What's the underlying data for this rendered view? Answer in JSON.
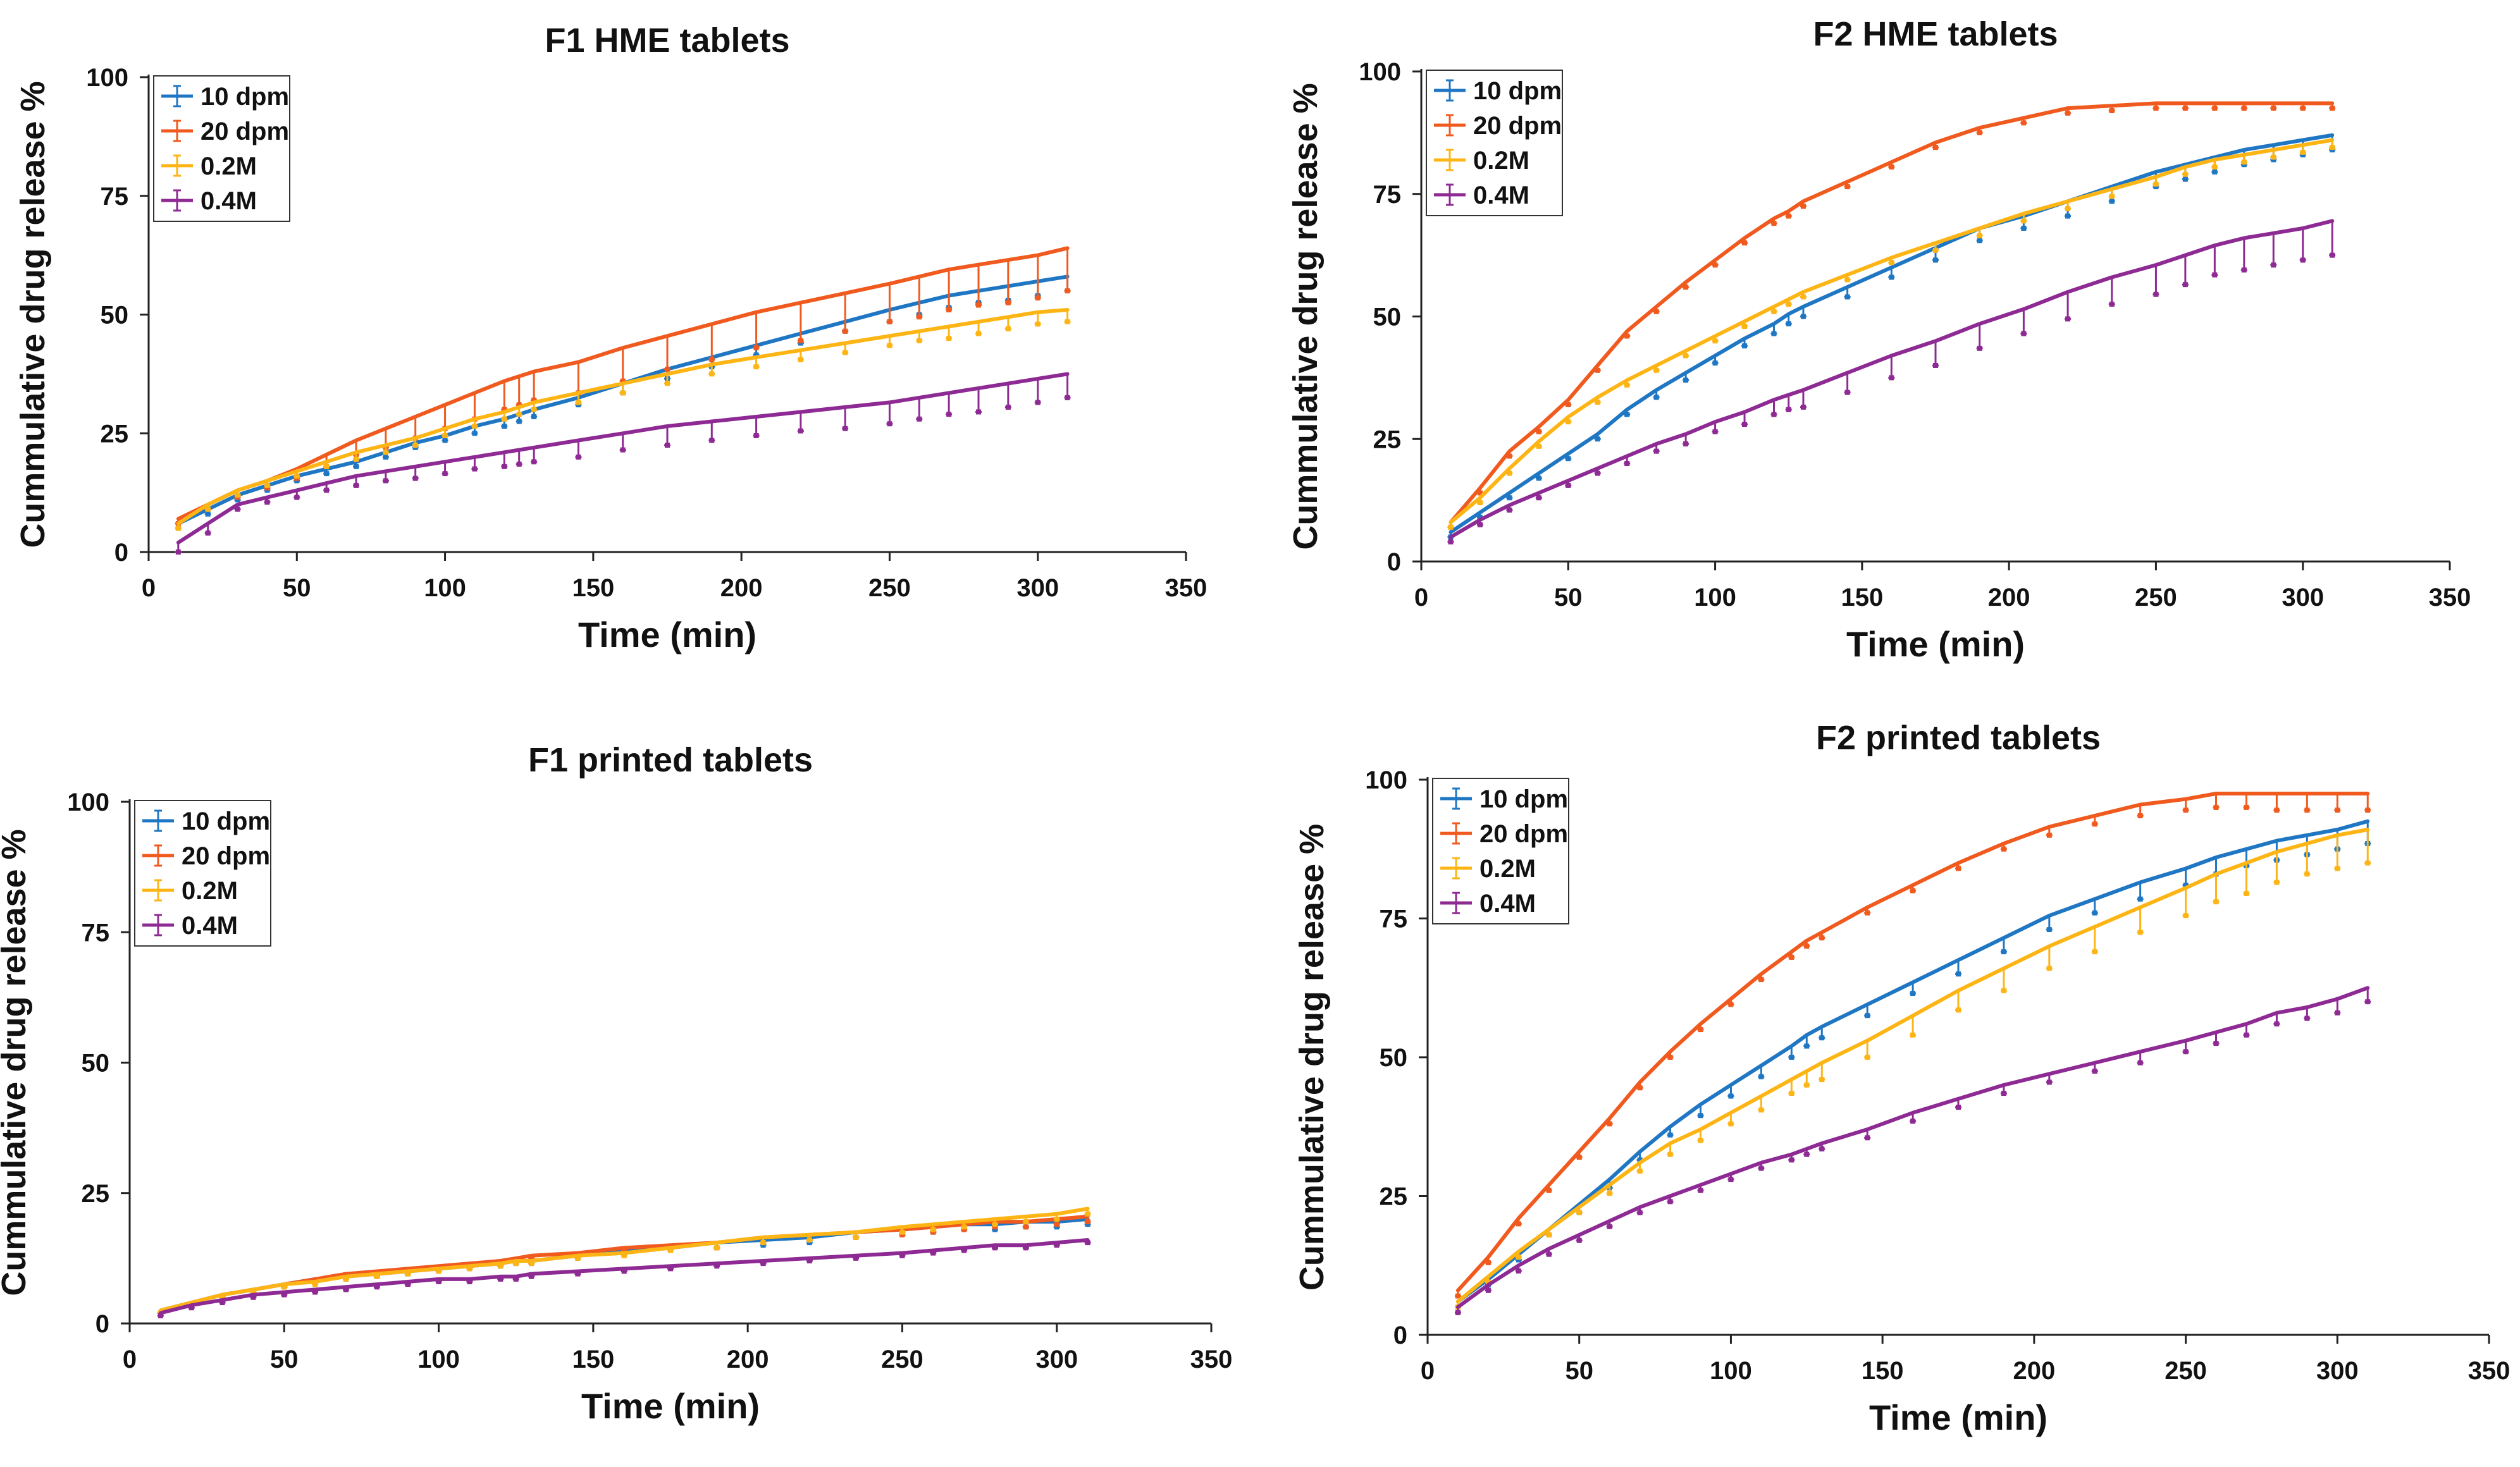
{
  "figure": {
    "x_axis_label": "Time (min)",
    "y_axis_label": "Cummulative drug release %",
    "x_ticks": [
      0,
      50,
      100,
      150,
      200,
      250,
      300,
      350
    ],
    "y_ticks": [
      0,
      25,
      50,
      75,
      100
    ]
  },
  "colors": {
    "10 dpm": "#1F77C4",
    "20 dpm": "#F05A1E",
    "0.2M": "#FDB515",
    "0.4M": "#8E2A93"
  },
  "chart_data": [
    {
      "type": "line",
      "title": "F1 HME tablets",
      "xlabel": "Time (min)",
      "ylabel": "Cummulative drug release %",
      "xlim": [
        0,
        350
      ],
      "ylim": [
        0,
        100
      ],
      "legend_position": "top-left",
      "x": [
        10,
        20,
        30,
        40,
        50,
        60,
        70,
        80,
        90,
        100,
        110,
        120,
        125,
        130,
        145,
        160,
        175,
        190,
        205,
        220,
        235,
        250,
        260,
        270,
        280,
        290,
        300,
        310
      ],
      "series": [
        {
          "name": "10 dpm",
          "values": [
            6,
            9,
            12,
            14,
            16,
            17.5,
            19,
            21,
            23,
            24.5,
            26.5,
            28,
            29,
            30,
            32.5,
            35.5,
            38.5,
            41,
            43.5,
            46,
            48.5,
            51,
            52.5,
            54,
            55,
            56,
            57,
            58
          ],
          "error": [
            1,
            1,
            1,
            1,
            1,
            1,
            1,
            1,
            1,
            1,
            1.5,
            1.5,
            1.5,
            1.5,
            1.5,
            2,
            2,
            2,
            2,
            2,
            2,
            2.5,
            2.5,
            2.5,
            2.5,
            3,
            3,
            3
          ]
        },
        {
          "name": "20 dpm",
          "values": [
            7,
            10,
            13,
            15,
            17.5,
            20.5,
            23.5,
            26,
            28.5,
            31,
            33.5,
            36,
            37,
            38,
            40,
            43,
            45.5,
            48,
            50.5,
            52.5,
            54.5,
            56.5,
            58,
            59.5,
            60.5,
            61.5,
            62.5,
            64
          ],
          "error": [
            1,
            1,
            1.5,
            1.5,
            2,
            2.5,
            3,
            4,
            4.5,
            5,
            5.5,
            6,
            6,
            6,
            6.5,
            7,
            7,
            7.5,
            7.5,
            8,
            8,
            8,
            8.5,
            8.5,
            8.5,
            9,
            9,
            9
          ]
        },
        {
          "name": "0.2M",
          "values": [
            6,
            10,
            13,
            15,
            17,
            19,
            21,
            22.5,
            24,
            26,
            28,
            29.5,
            30.5,
            31.5,
            33.5,
            35.5,
            37.5,
            39.5,
            41,
            42.5,
            44,
            45.5,
            46.5,
            47.5,
            48.5,
            49.5,
            50.5,
            51
          ],
          "error": [
            1,
            1,
            1,
            1,
            1,
            1,
            1.5,
            1.5,
            1.5,
            1.5,
            1.5,
            1.5,
            1.5,
            1.5,
            2,
            2,
            2,
            2,
            2,
            2,
            2,
            2,
            2,
            2.5,
            2.5,
            2.5,
            2.5,
            2.5
          ]
        },
        {
          "name": "0.4M",
          "values": [
            2,
            6,
            10,
            11.5,
            13,
            14.5,
            16,
            17,
            18,
            19,
            20,
            21,
            21.5,
            22,
            23.5,
            25,
            26.5,
            27.5,
            28.5,
            29.5,
            30.5,
            31.5,
            32.5,
            33.5,
            34.5,
            35.5,
            36.5,
            37.5
          ],
          "error": [
            2,
            2,
            1,
            1,
            1.5,
            1.5,
            2,
            2,
            2.5,
            2.5,
            2.5,
            3,
            3,
            3,
            3.5,
            3.5,
            4,
            4,
            4,
            4,
            4.5,
            4.5,
            4.5,
            4.5,
            5,
            5,
            5,
            5
          ]
        }
      ]
    },
    {
      "type": "line",
      "title": "F2 HME tablets",
      "xlabel": "Time (min)",
      "ylabel": "Cummulative drug release %",
      "xlim": [
        0,
        350
      ],
      "ylim": [
        0,
        100
      ],
      "legend_position": "top-left",
      "x": [
        10,
        20,
        30,
        40,
        50,
        60,
        70,
        80,
        90,
        100,
        110,
        120,
        125,
        130,
        145,
        160,
        175,
        190,
        205,
        220,
        235,
        250,
        260,
        270,
        280,
        290,
        300,
        310
      ],
      "series": [
        {
          "name": "10 dpm",
          "values": [
            6,
            10,
            14,
            18,
            22,
            26,
            31,
            35,
            38.5,
            42,
            45.5,
            48.5,
            50.5,
            52,
            56,
            60,
            64,
            68,
            70.5,
            73.5,
            76.5,
            79.5,
            81,
            82.5,
            84,
            85,
            86,
            87
          ],
          "error": [
            1,
            1,
            1,
            1,
            1,
            1,
            1,
            1.5,
            1.5,
            1.5,
            1.5,
            2,
            2,
            2,
            2,
            2,
            2.5,
            2.5,
            2.5,
            3,
            3,
            3,
            3,
            3,
            3,
            3,
            3,
            3
          ]
        },
        {
          "name": "20 dpm",
          "values": [
            8,
            15,
            22.5,
            27.5,
            33,
            40,
            47,
            52,
            57,
            61.5,
            66,
            70,
            71.5,
            73.5,
            77.5,
            81.5,
            85.5,
            88.5,
            90.5,
            92.5,
            93,
            93.5,
            93.5,
            93.5,
            93.5,
            93.5,
            93.5,
            93.5
          ],
          "error": [
            1,
            1,
            1,
            1,
            1,
            1,
            1,
            1,
            1,
            1,
            1,
            1,
            1,
            1,
            1,
            1,
            1,
            1,
            1,
            1,
            1,
            1,
            1,
            1,
            1,
            1,
            1,
            1
          ]
        },
        {
          "name": "0.2M",
          "values": [
            8,
            13,
            19,
            24.5,
            29.5,
            33.5,
            37,
            40,
            43,
            46,
            49,
            52,
            53.5,
            55,
            58.5,
            62,
            65,
            68,
            71,
            73.5,
            76,
            78.5,
            80.5,
            82,
            83,
            84,
            85,
            86
          ],
          "error": [
            1,
            1,
            1,
            1,
            1,
            1,
            1,
            1,
            1,
            1,
            1,
            1,
            1,
            1,
            1,
            1,
            1.5,
            1.5,
            1.5,
            1.5,
            1.5,
            1.5,
            1.5,
            1.5,
            1.5,
            1.5,
            1.5,
            1.5
          ]
        },
        {
          "name": "0.4M",
          "values": [
            5,
            8.5,
            11.5,
            14,
            16.5,
            19,
            21.5,
            24,
            26,
            28.5,
            30.5,
            33,
            34,
            35,
            38.5,
            42,
            45,
            48.5,
            51.5,
            55,
            58,
            60.5,
            62.5,
            64.5,
            66,
            67,
            68,
            69.5
          ],
          "error": [
            1,
            1,
            1,
            1,
            1,
            1,
            1.5,
            1.5,
            2,
            2,
            2.5,
            3,
            3,
            3.5,
            4,
            4.5,
            5,
            5,
            5,
            5.5,
            5.5,
            6,
            6,
            6,
            6.5,
            6.5,
            6.5,
            7
          ]
        }
      ]
    },
    {
      "type": "line",
      "title": "F1 printed tablets",
      "xlabel": "Time (min)",
      "ylabel": "Cummulative drug release %",
      "xlim": [
        0,
        350
      ],
      "ylim": [
        0,
        100
      ],
      "legend_position": "top-left",
      "x": [
        10,
        20,
        30,
        40,
        50,
        60,
        70,
        80,
        90,
        100,
        110,
        120,
        125,
        130,
        145,
        160,
        175,
        190,
        205,
        220,
        235,
        250,
        260,
        270,
        280,
        290,
        300,
        310
      ],
      "series": [
        {
          "name": "10 dpm",
          "values": [
            2.5,
            4,
            5.5,
            6.5,
            7.5,
            8.5,
            9,
            9.5,
            10,
            10.5,
            11,
            11.5,
            12,
            12,
            13,
            14,
            14.5,
            15.5,
            16,
            16.5,
            17.5,
            18,
            18.5,
            19,
            19,
            19.5,
            19.5,
            20
          ],
          "error": [
            0.5,
            0.5,
            0.5,
            0.5,
            0.5,
            0.5,
            0.5,
            0.5,
            0.5,
            0.5,
            0.5,
            0.5,
            0.5,
            0.5,
            0.5,
            0.5,
            0.5,
            1,
            1,
            1,
            1,
            1,
            1,
            1,
            1,
            1,
            1,
            1
          ]
        },
        {
          "name": "20 dpm",
          "values": [
            2.5,
            4,
            5.5,
            6.5,
            7.5,
            8.5,
            9.5,
            10,
            10.5,
            11,
            11.5,
            12,
            12.5,
            13,
            13.5,
            14.5,
            15,
            15.5,
            16.5,
            17,
            17.5,
            18,
            18.5,
            19,
            19.5,
            19.5,
            20,
            20.5
          ],
          "error": [
            0.5,
            0.5,
            0.5,
            0.5,
            0.5,
            0.5,
            0.5,
            0.5,
            0.5,
            0.5,
            0.5,
            0.5,
            0.5,
            0.5,
            0.5,
            0.5,
            0.5,
            1,
            1,
            1,
            1,
            1,
            1,
            1,
            1,
            1,
            1,
            1
          ]
        },
        {
          "name": "0.2M",
          "values": [
            2.5,
            4,
            5.5,
            6.5,
            7.5,
            8,
            9,
            9.5,
            10,
            10.5,
            11,
            11.5,
            12,
            12,
            13,
            13.5,
            14.5,
            15.5,
            16.5,
            17,
            17.5,
            18.5,
            19,
            19.5,
            20,
            20.5,
            21,
            22
          ],
          "error": [
            0.5,
            0.5,
            0.5,
            0.5,
            0.5,
            0.5,
            0.5,
            0.5,
            0.5,
            0.5,
            0.5,
            0.5,
            0.5,
            0.5,
            0.5,
            0.5,
            0.5,
            1,
            1,
            1,
            1,
            1,
            1,
            1,
            1,
            1,
            1,
            1
          ]
        },
        {
          "name": "0.4M",
          "values": [
            2,
            3.5,
            4.5,
            5.5,
            6,
            6.5,
            7,
            7.5,
            8,
            8.5,
            8.5,
            9,
            9,
            9.5,
            10,
            10.5,
            11,
            11.5,
            12,
            12.5,
            13,
            13.5,
            14,
            14.5,
            15,
            15,
            15.5,
            16
          ],
          "error": [
            0.5,
            0.5,
            0.5,
            0.5,
            0.5,
            0.5,
            0.5,
            0.5,
            0.5,
            0.5,
            0.5,
            0.5,
            0.5,
            0.5,
            0.5,
            0.5,
            0.5,
            0.5,
            0.5,
            0.5,
            0.5,
            0.5,
            0.5,
            0.5,
            0.5,
            0.5,
            0.5,
            0.5
          ]
        }
      ]
    },
    {
      "type": "line",
      "title": "F2 printed tablets",
      "xlabel": "Time (min)",
      "ylabel": "Cummulative drug release %",
      "xlim": [
        0,
        350
      ],
      "ylim": [
        0,
        100
      ],
      "legend_position": "top-left",
      "x": [
        10,
        20,
        30,
        40,
        50,
        60,
        70,
        80,
        90,
        100,
        110,
        120,
        125,
        130,
        145,
        160,
        175,
        190,
        205,
        220,
        235,
        250,
        260,
        270,
        280,
        290,
        300,
        310
      ],
      "series": [
        {
          "name": "10 dpm",
          "values": [
            6,
            10,
            14.5,
            19,
            23.5,
            28,
            33,
            37.5,
            41.5,
            45,
            48.5,
            52,
            54,
            55.5,
            59.5,
            63.5,
            67.5,
            71.5,
            75.5,
            78.5,
            81.5,
            84,
            86,
            87.5,
            89,
            90,
            91,
            92.5
          ],
          "error": [
            1,
            1,
            1,
            1,
            1.5,
            1.5,
            1.5,
            1.5,
            2,
            2,
            2,
            2,
            2,
            2,
            2,
            2,
            2.5,
            2.5,
            2.5,
            2.5,
            3,
            3,
            3,
            3,
            3.5,
            3.5,
            3.5,
            4
          ]
        },
        {
          "name": "20 dpm",
          "values": [
            8,
            14,
            21,
            27,
            33,
            39,
            45.5,
            51,
            56,
            60.5,
            65,
            69,
            71,
            72.5,
            77,
            81,
            85,
            88.5,
            91.5,
            93.5,
            95.5,
            96.5,
            97.5,
            97.5,
            97.5,
            97.5,
            97.5,
            97.5
          ],
          "error": [
            1,
            1,
            1,
            1,
            1,
            1,
            1,
            1,
            1,
            1,
            1,
            1,
            1,
            1,
            1,
            1,
            1,
            1,
            1.5,
            1.5,
            2,
            2,
            2.5,
            2.5,
            3,
            3,
            3,
            3
          ]
        },
        {
          "name": "0.2M",
          "values": [
            6,
            10.5,
            15,
            19,
            23,
            27,
            31,
            34.5,
            37,
            40,
            43,
            46,
            47.5,
            49,
            53,
            57.5,
            62,
            66,
            70,
            73.5,
            77,
            80.5,
            83,
            85,
            87,
            88.5,
            90,
            91
          ],
          "error": [
            1,
            1,
            1,
            1,
            1,
            1.5,
            1.5,
            2,
            2,
            2,
            2.5,
            2.5,
            2.5,
            3,
            3,
            3.5,
            3.5,
            4,
            4,
            4.5,
            4.5,
            5,
            5,
            5.5,
            5.5,
            5.5,
            6,
            6
          ]
        },
        {
          "name": "0.4M",
          "values": [
            5,
            9,
            12.5,
            15.5,
            18,
            20.5,
            23,
            25,
            27,
            29,
            31,
            32.5,
            33.5,
            34.5,
            37,
            40,
            42.5,
            45,
            47,
            49,
            51,
            53,
            54.5,
            56,
            58,
            59,
            60.5,
            62.5
          ],
          "error": [
            1,
            1,
            1,
            1,
            1,
            1,
            1,
            1,
            1,
            1,
            1,
            1,
            1,
            1,
            1.5,
            1.5,
            1.5,
            1.5,
            1.5,
            1.5,
            2,
            2,
            2,
            2,
            2,
            2,
            2.5,
            2.5
          ]
        }
      ]
    }
  ]
}
